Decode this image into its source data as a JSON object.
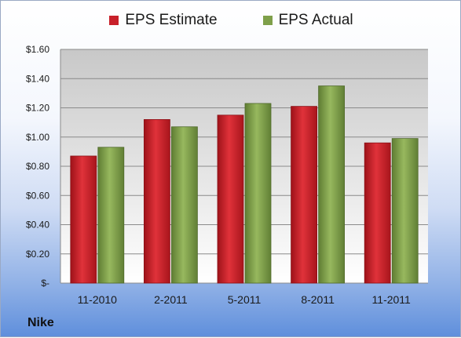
{
  "company": "Nike",
  "colors": {
    "estimate": "#c8202a",
    "actual": "#7fa04a",
    "plot_top": "#c8c8c8",
    "plot_bottom": "#ffffff"
  },
  "chart_data": {
    "type": "bar",
    "categories": [
      "11-2010",
      "2-2011",
      "5-2011",
      "8-2011",
      "11-2011"
    ],
    "series": [
      {
        "name": "EPS Estimate",
        "values": [
          0.87,
          1.12,
          1.15,
          1.21,
          0.96
        ]
      },
      {
        "name": "EPS Actual",
        "values": [
          0.93,
          1.07,
          1.23,
          1.35,
          0.99
        ]
      }
    ],
    "ylim": [
      0,
      1.6
    ],
    "yticks": [
      0,
      0.2,
      0.4,
      0.6,
      0.8,
      1.0,
      1.2,
      1.4,
      1.6
    ],
    "ytick_labels": [
      "$-",
      "$0.20",
      "$0.40",
      "$0.60",
      "$0.80",
      "$1.00",
      "$1.20",
      "$1.40",
      "$1.60"
    ],
    "grid": true,
    "legend": "top-center"
  }
}
